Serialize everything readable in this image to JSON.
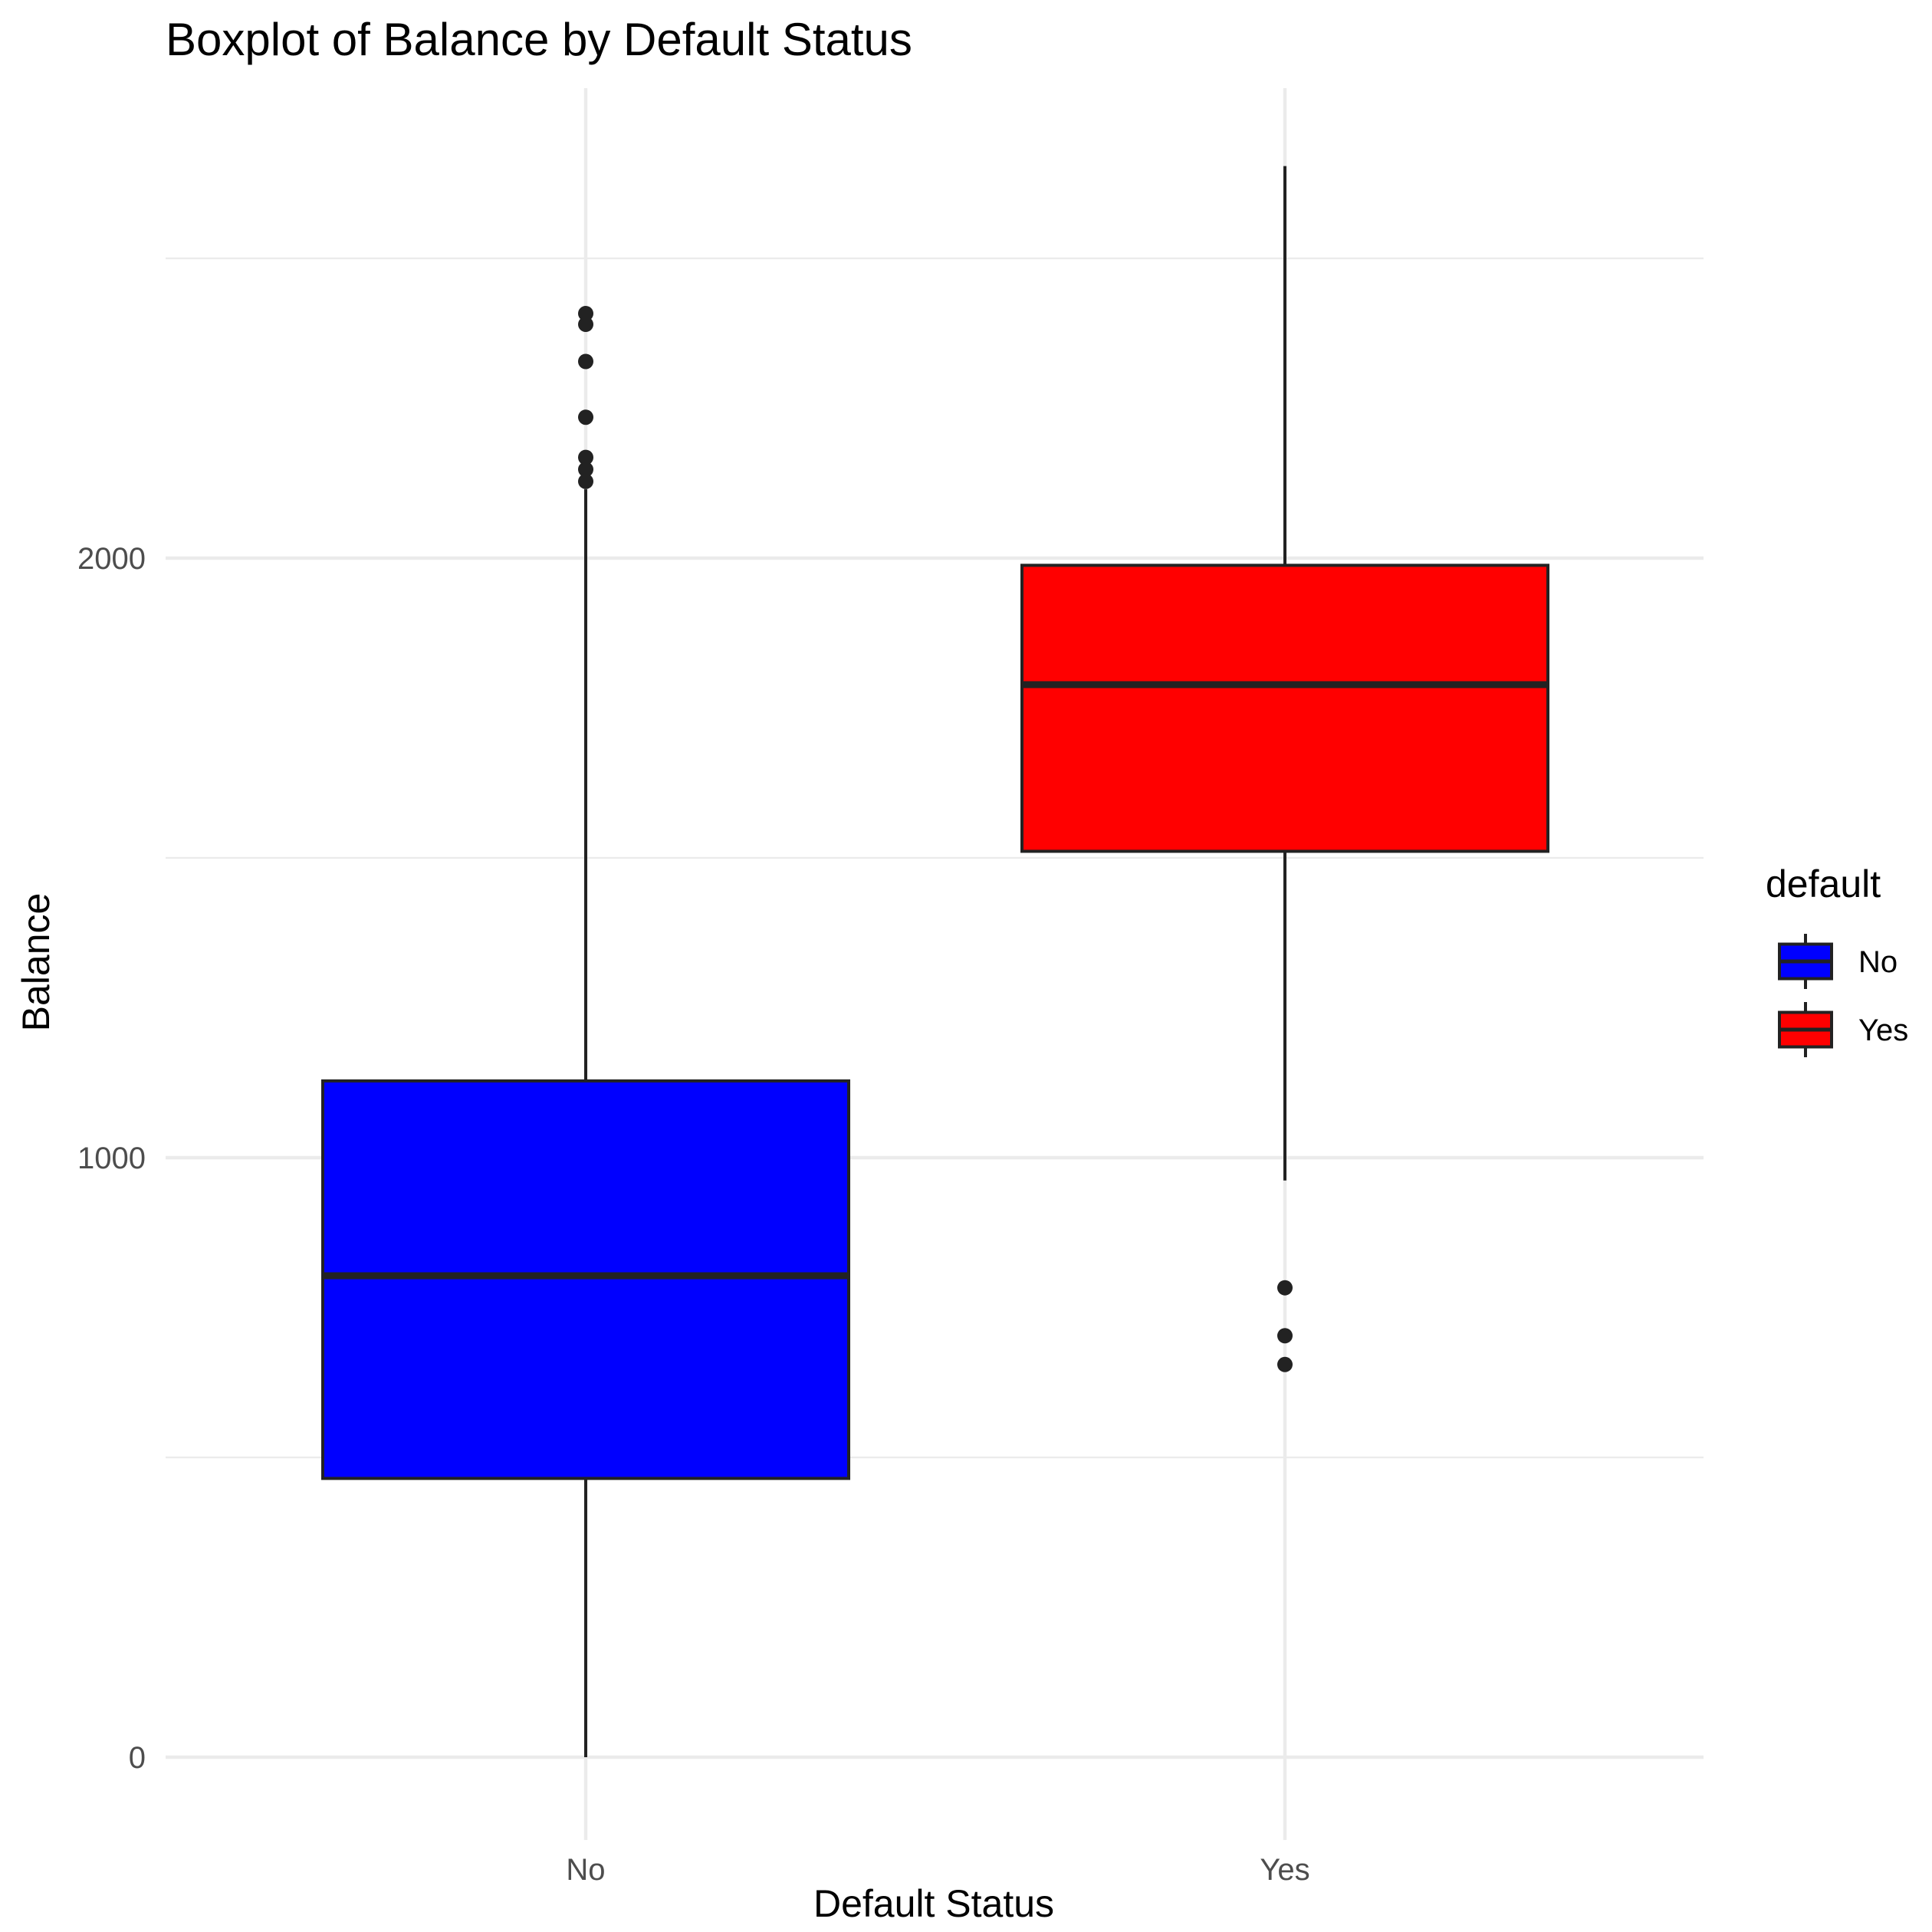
{
  "chart_data": {
    "type": "boxplot",
    "title": "Boxplot of Balance by Default Status",
    "xlabel": "Default Status",
    "ylabel": "Balance",
    "categories": [
      "No",
      "Yes"
    ],
    "ylim": [
      -120,
      2800
    ],
    "yticks": [
      0,
      1000,
      2000
    ],
    "grid": true,
    "legend": {
      "title": "default",
      "position": "right",
      "entries": [
        "No",
        "Yes"
      ]
    },
    "colors": {
      "No": "#0000ff",
      "Yes": "#ff0000",
      "outline": "#222222",
      "grid": "#ebebeb"
    },
    "series": [
      {
        "category": "No",
        "min": 0,
        "q1": 465,
        "median": 803,
        "q3": 1128,
        "max": 2115,
        "outliers": [
          2128,
          2148,
          2168,
          2235,
          2328,
          2390,
          2408
        ]
      },
      {
        "category": "Yes",
        "min": 962,
        "q1": 1511,
        "median": 1789,
        "q3": 1988,
        "max": 2654,
        "outliers": [
          783,
          703,
          655
        ]
      }
    ]
  }
}
